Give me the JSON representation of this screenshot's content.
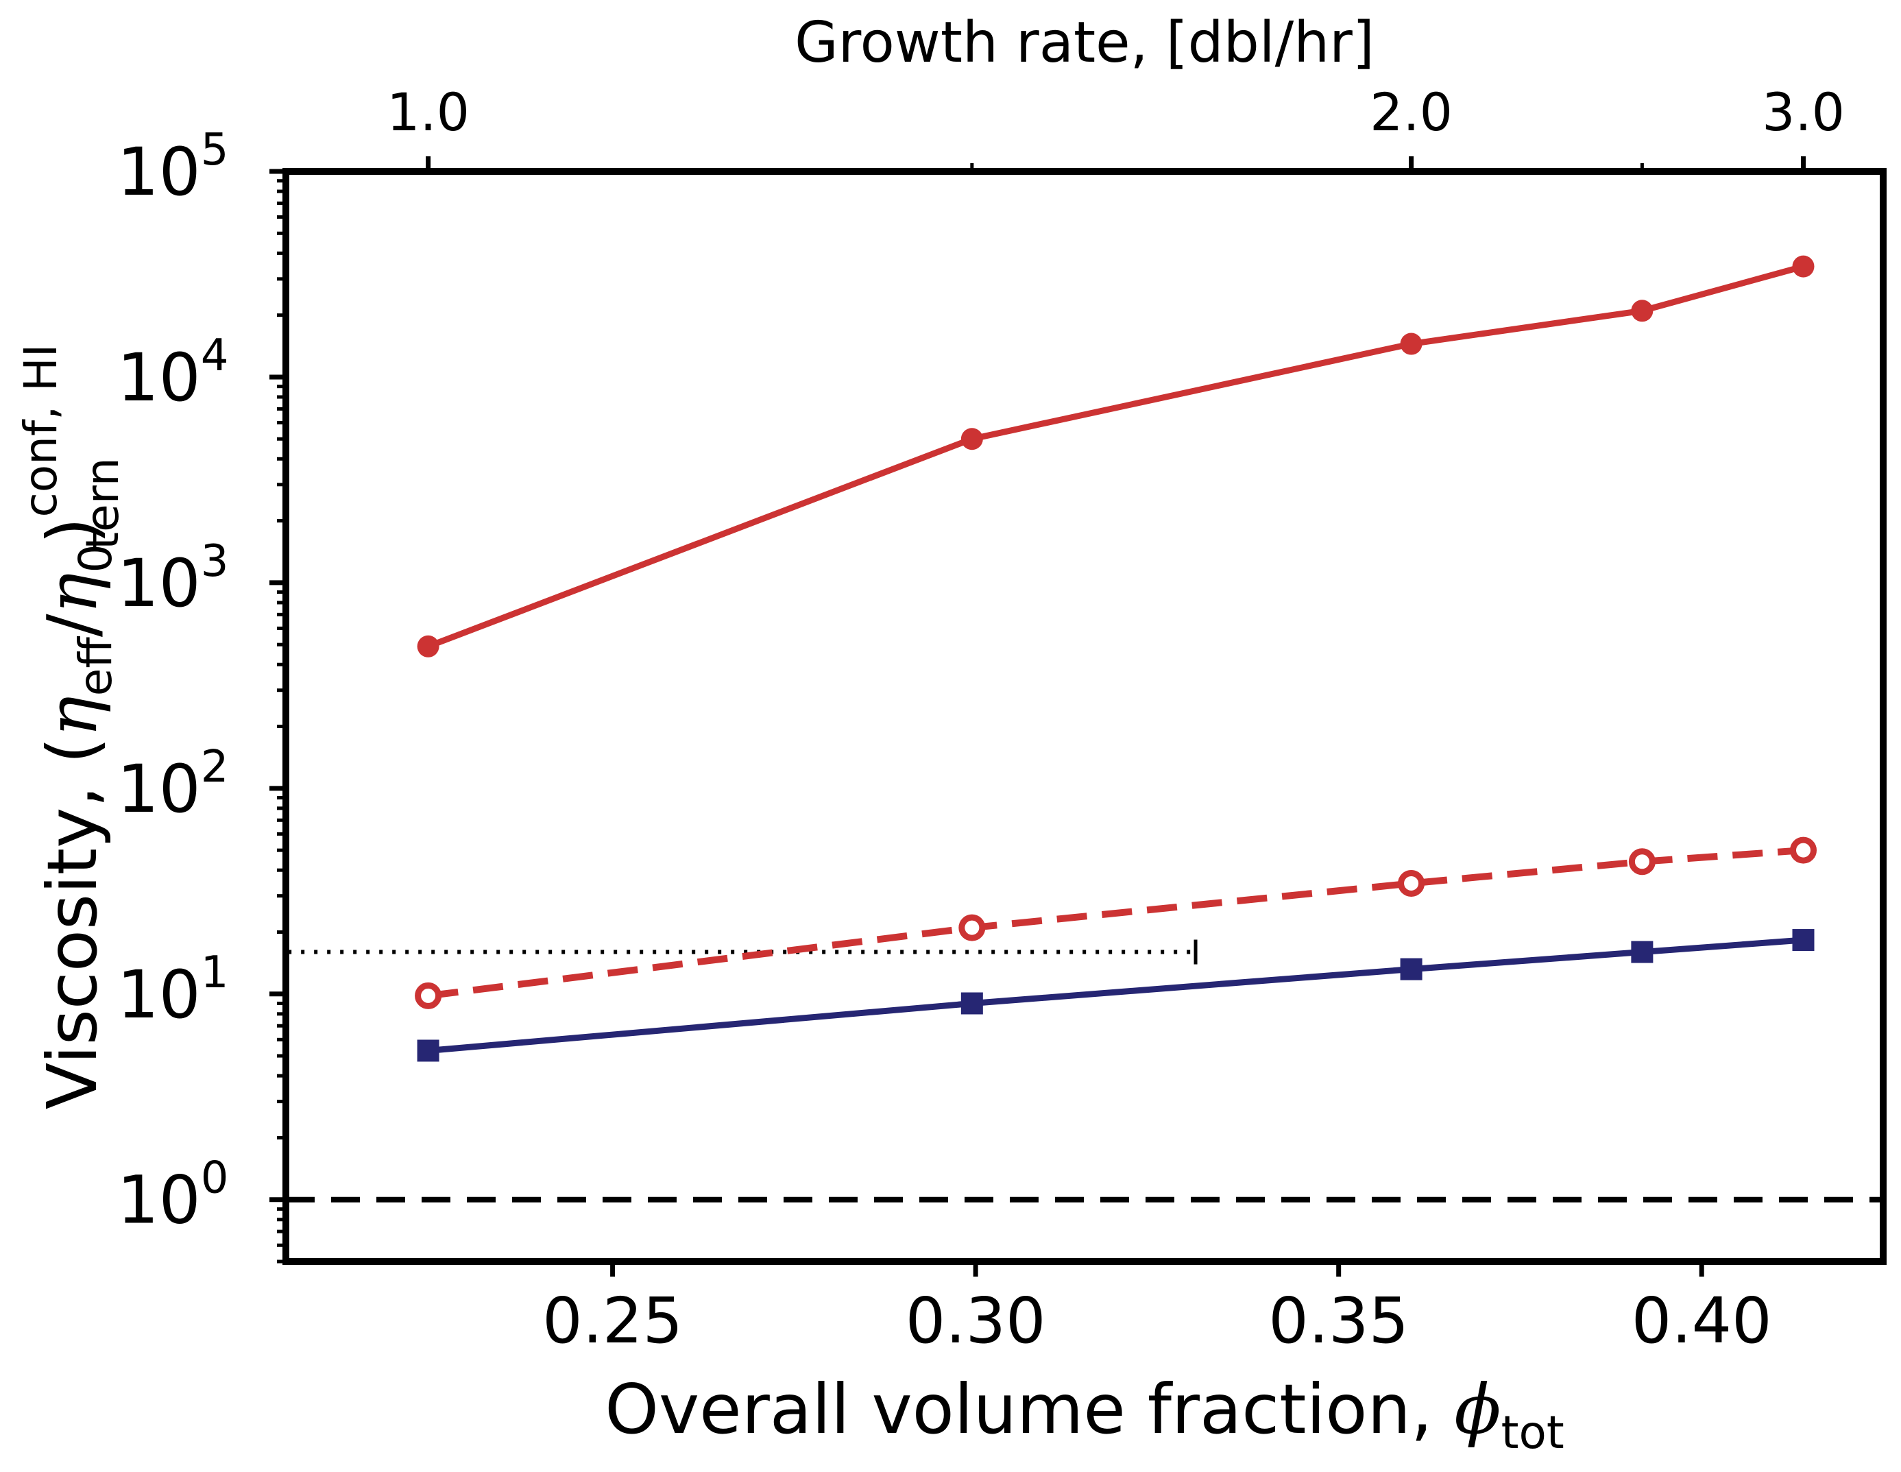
{
  "chart_data": {
    "type": "line",
    "xlabel_main": "Overall volume fraction, ",
    "xlabel_symbol": "ϕ",
    "xlabel_sub": "tot",
    "x2label": "Growth rate, [dbl/hr]",
    "ylabel_main": "Viscosity, (",
    "ylabel_eta": "η",
    "ylabel_eff": "eff",
    "ylabel_slash": "/",
    "ylabel_zero": "0",
    "ylabel_close": ")",
    "ylabel_sup": "conf, HI",
    "ylabel_sub": "tern",
    "xlim": [
      0.205,
      0.425
    ],
    "ylim": [
      0.5,
      100000
    ],
    "yscale": "log",
    "x_ticks": [
      {
        "value": 0.25,
        "label": "0.25"
      },
      {
        "value": 0.3,
        "label": "0.30"
      },
      {
        "value": 0.35,
        "label": "0.35"
      },
      {
        "value": 0.4,
        "label": "0.40"
      }
    ],
    "y_ticks": [
      {
        "value": 1,
        "base": "10",
        "exp": "0"
      },
      {
        "value": 10,
        "base": "10",
        "exp": "1"
      },
      {
        "value": 100,
        "base": "10",
        "exp": "2"
      },
      {
        "value": 1000,
        "base": "10",
        "exp": "3"
      },
      {
        "value": 10000,
        "base": "10",
        "exp": "4"
      },
      {
        "value": 100000,
        "base": "10",
        "exp": "5"
      }
    ],
    "top_ticks": [
      {
        "value": 0.2246,
        "label": "1.0"
      },
      {
        "value": 0.36,
        "label": "2.0"
      },
      {
        "value": 0.414,
        "label": "3.0"
      }
    ],
    "top_minor_ticks": [
      0.2995,
      0.3918
    ],
    "series": [
      {
        "style": "solid-filled-circle",
        "color": "#cc3333",
        "x": [
          0.2246,
          0.2995,
          0.36,
          0.3918,
          0.414
        ],
        "y": [
          490,
          5000,
          14500,
          21000,
          34500
        ]
      },
      {
        "style": "dashed-open-circle",
        "color": "#cc3333",
        "x": [
          0.2246,
          0.2995,
          0.36,
          0.3918,
          0.414
        ],
        "y": [
          9.8,
          21,
          34.5,
          44,
          50
        ]
      },
      {
        "style": "solid-filled-square",
        "color": "#262673",
        "x": [
          0.2246,
          0.2995,
          0.36,
          0.3918,
          0.414
        ],
        "y": [
          5.3,
          9.0,
          13.2,
          16.0,
          18.3
        ]
      }
    ],
    "reference_lines": [
      {
        "style": "dashed",
        "color": "#000000",
        "y": 1.0,
        "x_from": 0.205,
        "x_to": 0.425
      },
      {
        "style": "dotted",
        "color": "#000000",
        "y": 16,
        "x_from": 0.2053,
        "x_to": 0.3303
      }
    ],
    "grid": false,
    "legend": "none"
  }
}
